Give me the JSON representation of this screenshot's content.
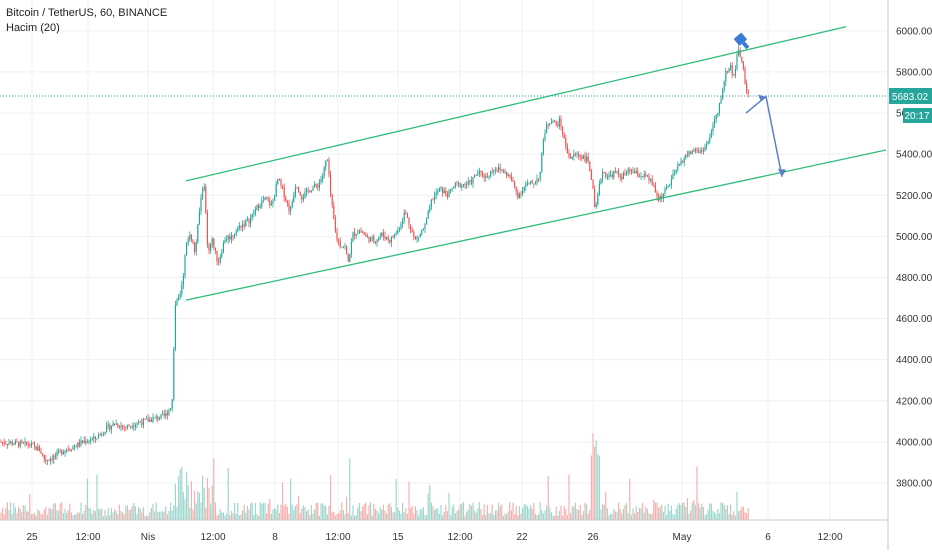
{
  "legend": {
    "title": "Bitcoin / TetherUS, 60, BINANCE",
    "volume_label": "Hacim (20)"
  },
  "price_tag": {
    "value": "5683.02",
    "countdown": "20:17",
    "color": "#26a69a"
  },
  "colors": {
    "up": "#26a69a",
    "down": "#ef5350",
    "channel": "#2dbd7a",
    "projection": "#5b7fcc",
    "marker": "#3a7bd5",
    "price_line": "#26a69a"
  },
  "chart_data": {
    "type": "candlestick",
    "title": "Bitcoin / TetherUS, 60, BINANCE",
    "ylim": [
      3620,
      6150
    ],
    "y_ticks": [
      3800,
      4000,
      4200,
      4400,
      4600,
      4800,
      5000,
      5200,
      5400,
      5600,
      5800,
      6000
    ],
    "x_ticks": [
      "25",
      "12:00",
      "Nis",
      "12:00",
      "8",
      "12:00",
      "15",
      "12:00",
      "22",
      "26",
      "May",
      "6",
      "12:00"
    ],
    "grid": true,
    "price_path": [
      [
        0,
        4000
      ],
      [
        10,
        3995
      ],
      [
        20,
        3990
      ],
      [
        30,
        3985
      ],
      [
        40,
        3960
      ],
      [
        45,
        3910
      ],
      [
        55,
        3930
      ],
      [
        65,
        3965
      ],
      [
        75,
        3980
      ],
      [
        85,
        4005
      ],
      [
        95,
        4015
      ],
      [
        105,
        4060
      ],
      [
        115,
        4090
      ],
      [
        125,
        4070
      ],
      [
        135,
        4090
      ],
      [
        145,
        4100
      ],
      [
        155,
        4115
      ],
      [
        165,
        4125
      ],
      [
        172,
        4180
      ],
      [
        175,
        4650
      ],
      [
        180,
        4720
      ],
      [
        183,
        4800
      ],
      [
        186,
        4950
      ],
      [
        190,
        5020
      ],
      [
        195,
        4920
      ],
      [
        200,
        5150
      ],
      [
        204,
        5270
      ],
      [
        208,
        4900
      ],
      [
        212,
        4980
      ],
      [
        218,
        4870
      ],
      [
        225,
        4990
      ],
      [
        232,
        5000
      ],
      [
        240,
        5050
      ],
      [
        250,
        5080
      ],
      [
        258,
        5150
      ],
      [
        265,
        5180
      ],
      [
        272,
        5150
      ],
      [
        278,
        5280
      ],
      [
        283,
        5220
      ],
      [
        290,
        5120
      ],
      [
        296,
        5260
      ],
      [
        302,
        5190
      ],
      [
        310,
        5230
      ],
      [
        318,
        5250
      ],
      [
        323,
        5300
      ],
      [
        327,
        5390
      ],
      [
        331,
        5180
      ],
      [
        336,
        5000
      ],
      [
        340,
        4960
      ],
      [
        345,
        4950
      ],
      [
        348,
        4870
      ],
      [
        353,
        5010
      ],
      [
        360,
        5030
      ],
      [
        368,
        4990
      ],
      [
        375,
        4980
      ],
      [
        382,
        5010
      ],
      [
        390,
        4980
      ],
      [
        398,
        5030
      ],
      [
        405,
        5120
      ],
      [
        410,
        5050
      ],
      [
        415,
        4980
      ],
      [
        420,
        5010
      ],
      [
        425,
        5050
      ],
      [
        432,
        5180
      ],
      [
        440,
        5230
      ],
      [
        448,
        5200
      ],
      [
        455,
        5250
      ],
      [
        462,
        5250
      ],
      [
        470,
        5260
      ],
      [
        478,
        5310
      ],
      [
        486,
        5290
      ],
      [
        494,
        5330
      ],
      [
        502,
        5320
      ],
      [
        510,
        5290
      ],
      [
        518,
        5200
      ],
      [
        526,
        5250
      ],
      [
        534,
        5260
      ],
      [
        540,
        5300
      ],
      [
        544,
        5500
      ],
      [
        548,
        5550
      ],
      [
        552,
        5570
      ],
      [
        556,
        5540
      ],
      [
        560,
        5560
      ],
      [
        565,
        5450
      ],
      [
        570,
        5380
      ],
      [
        576,
        5400
      ],
      [
        582,
        5390
      ],
      [
        588,
        5370
      ],
      [
        592,
        5270
      ],
      [
        595,
        5110
      ],
      [
        598,
        5200
      ],
      [
        602,
        5320
      ],
      [
        608,
        5290
      ],
      [
        615,
        5310
      ],
      [
        622,
        5290
      ],
      [
        630,
        5320
      ],
      [
        638,
        5300
      ],
      [
        646,
        5290
      ],
      [
        652,
        5260
      ],
      [
        658,
        5180
      ],
      [
        664,
        5210
      ],
      [
        670,
        5260
      ],
      [
        676,
        5320
      ],
      [
        682,
        5370
      ],
      [
        688,
        5400
      ],
      [
        694,
        5420
      ],
      [
        700,
        5410
      ],
      [
        706,
        5440
      ],
      [
        710,
        5480
      ],
      [
        714,
        5560
      ],
      [
        718,
        5600
      ],
      [
        722,
        5700
      ],
      [
        726,
        5800
      ],
      [
        730,
        5830
      ],
      [
        734,
        5780
      ],
      [
        738,
        5900
      ],
      [
        742,
        5860
      ],
      [
        745,
        5750
      ],
      [
        747,
        5680
      ],
      [
        749,
        5683
      ]
    ],
    "volume_bars": 200,
    "annotations": {
      "channel_upper": [
        [
          186,
          5270
        ],
        [
          846,
          6020
        ]
      ],
      "channel_lower": [
        [
          186,
          4690
        ],
        [
          886,
          5420
        ]
      ],
      "projection": [
        [
          746,
          5600
        ],
        [
          766,
          5680
        ],
        [
          782,
          5290
        ]
      ],
      "marker_price": 5950,
      "current_price": 5683.02
    }
  }
}
